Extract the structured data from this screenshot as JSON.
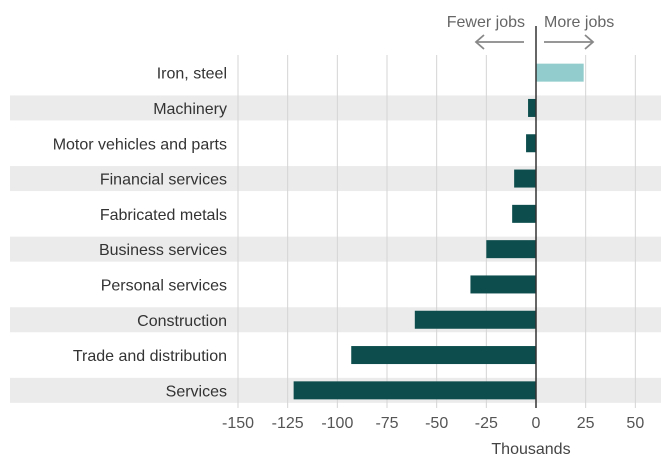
{
  "chart_data": {
    "type": "bar",
    "orientation": "horizontal",
    "categories": [
      "Iron, steel",
      "Machinery",
      "Motor vehicles and parts",
      "Financial services",
      "Fabricated metals",
      "Business services",
      "Personal services",
      "Construction",
      "Trade and distribution",
      "Services"
    ],
    "values": [
      24,
      -4,
      -5,
      -11,
      -12,
      -25,
      -33,
      -61,
      -93,
      -122
    ],
    "xlim": [
      -150,
      50
    ],
    "xticks": [
      -150,
      -125,
      -100,
      -75,
      -50,
      -25,
      0,
      25,
      50
    ],
    "xlabel": "Thousands",
    "ylabel": "",
    "title": "",
    "grid": "vertical",
    "row_banding": true,
    "annotations": {
      "negative": "Fewer jobs",
      "positive": "More jobs"
    },
    "colors": {
      "positive": "#93cccc",
      "negative": "#0d4d4d",
      "band": "#ebebeb",
      "grid": "#d4d4d4",
      "zero_line": "#333333",
      "arrow": "#888888"
    }
  }
}
